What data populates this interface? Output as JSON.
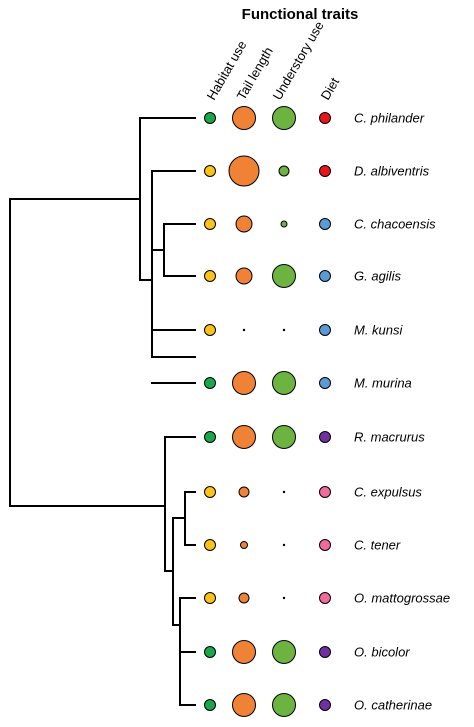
{
  "title": "Functional traits",
  "columns": [
    {
      "key": "habitat",
      "label": "Habitat use"
    },
    {
      "key": "tail",
      "label": "Tail length"
    },
    {
      "key": "understory",
      "label": "Understory use"
    },
    {
      "key": "diet",
      "label": "Diet"
    }
  ],
  "colors": {
    "green": "#1aa64b",
    "yellow": "#fbc21a",
    "orange": "#f08236",
    "understory_green": "#6db33f",
    "red": "#e8161b",
    "blue": "#5b9bd5",
    "purple": "#7030a0",
    "pink": "#f06b9c",
    "line": "#000000"
  },
  "species": [
    {
      "name": "C. philander",
      "habitat": "green",
      "tail": "large",
      "understory": "large",
      "diet": "red"
    },
    {
      "name": "D. albiventris",
      "habitat": "yellow",
      "tail": "xlarge",
      "understory": "small",
      "diet": "red"
    },
    {
      "name": "C. chacoensis",
      "habitat": "yellow",
      "tail": "medium",
      "understory": "tiny",
      "diet": "blue"
    },
    {
      "name": "G. agilis",
      "habitat": "yellow",
      "tail": "medium",
      "understory": "large",
      "diet": "blue"
    },
    {
      "name": "M. kunsi",
      "habitat": "yellow",
      "tail": "dot",
      "understory": "dot",
      "diet": "blue"
    },
    {
      "name": "M. murina",
      "habitat": "green",
      "tail": "large",
      "understory": "large",
      "diet": "blue"
    },
    {
      "name": "R. macrurus",
      "habitat": "green",
      "tail": "large",
      "understory": "large",
      "diet": "purple"
    },
    {
      "name": "C. expulsus",
      "habitat": "yellow",
      "tail": "small",
      "understory": "dot",
      "diet": "pink"
    },
    {
      "name": "C. tener",
      "habitat": "yellow",
      "tail": "xsmall",
      "understory": "dot",
      "diet": "pink"
    },
    {
      "name": "O. mattogrossae",
      "habitat": "yellow",
      "tail": "small",
      "understory": "dot",
      "diet": "pink"
    },
    {
      "name": "O. bicolor",
      "habitat": "green",
      "tail": "large",
      "understory": "large",
      "diet": "purple"
    },
    {
      "name": "O. catherinae",
      "habitat": "green",
      "tail": "large",
      "understory": "large",
      "diet": "purple"
    }
  ]
}
